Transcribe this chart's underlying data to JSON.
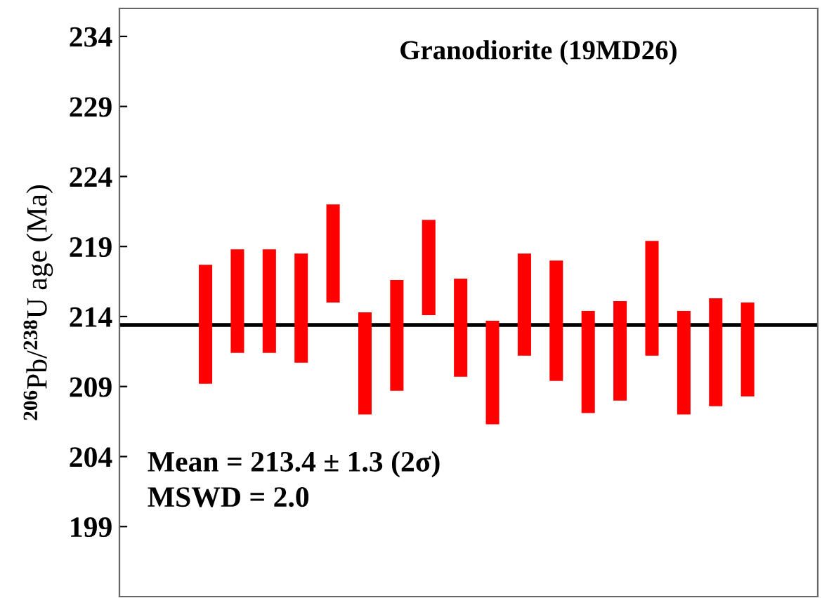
{
  "chart_data": {
    "type": "bar",
    "title": "Granodiorite (19MD26)",
    "ylabel": "$^{206}$Pb/$^{238}$U age (Ma)",
    "categories": [
      null,
      null,
      null,
      null,
      null,
      null,
      null,
      null,
      null,
      null,
      null,
      null,
      null,
      null,
      null,
      null,
      null,
      null
    ],
    "base": [
      209.2,
      211.4,
      211.4,
      210.7,
      215.0,
      207.0,
      208.7,
      214.1,
      209.7,
      206.3,
      211.2,
      209.4,
      207.1,
      208.0,
      211.2,
      207.0,
      207.6,
      208.3
    ],
    "values": [
      8.5,
      7.4,
      7.4,
      7.8,
      7.0,
      7.3,
      7.9,
      6.8,
      7.0,
      7.4,
      7.3,
      8.6,
      7.3,
      7.1,
      8.2,
      7.4,
      7.7,
      6.7
    ],
    "color": "#ff0000",
    "ylim": [
      194,
      236
    ],
    "yticks": [
      199,
      204,
      209,
      214,
      219,
      224,
      229,
      234
    ],
    "ref_lines": [
      {
        "axis": "y",
        "value": 213.4,
        "color": "#000000"
      }
    ],
    "annotations": [
      "Mean = 213.4 ± 1.3 (2σ)",
      "MSWD = 2.0"
    ],
    "tick_labels": "y",
    "grid": false
  }
}
